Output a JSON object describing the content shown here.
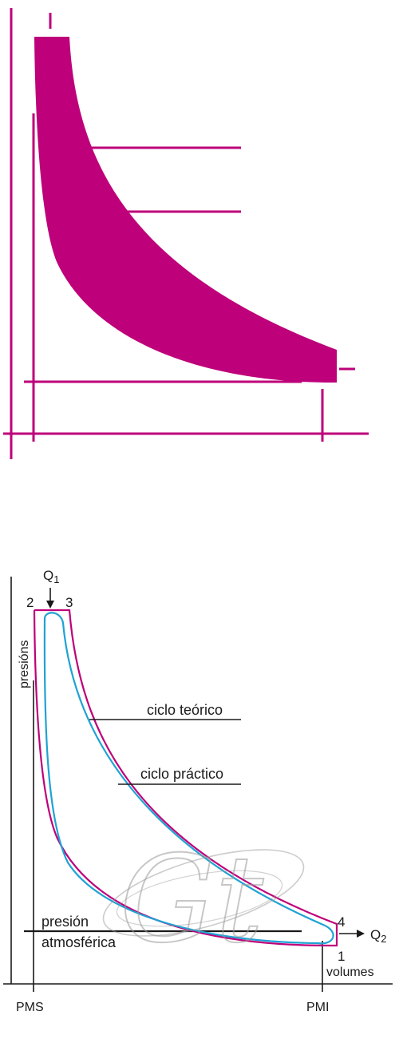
{
  "colors": {
    "magenta": "#BE007A",
    "cyan": "#1FA2D4",
    "ink": "#1A1A1A",
    "watermark": "#9A9A9A"
  },
  "top_diagram": {
    "fill_color": "#BE007A"
  },
  "bottom_diagram": {
    "heat_in": {
      "base": "Q",
      "sub": "1"
    },
    "heat_out": {
      "base": "Q",
      "sub": "2"
    },
    "points": {
      "p1": "1",
      "p2": "2",
      "p3": "3",
      "p4": "4"
    },
    "y_axis_label": "presións",
    "x_axis_label": "volumes",
    "pms_label": "PMS",
    "pmi_label": "PMI",
    "theoretical_cycle_label": "ciclo teórico",
    "practical_cycle_label": "ciclo práctico",
    "atmospheric_label_line1": "presión",
    "atmospheric_label_line2": "atmosférica"
  },
  "watermark": {
    "text": "Gt"
  }
}
